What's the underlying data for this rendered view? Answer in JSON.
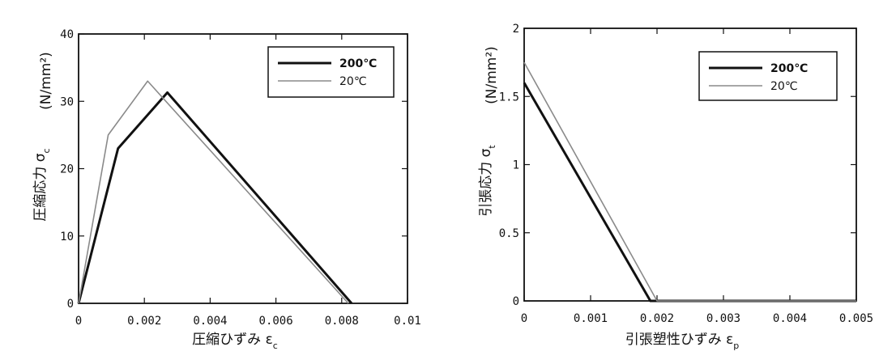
{
  "chart_data": [
    {
      "type": "line",
      "xlim": [
        0,
        0.01
      ],
      "ylim": [
        0,
        40
      ],
      "xticks": [
        "0",
        "0.002",
        "0.004",
        "0.006",
        "0.008",
        "0.01"
      ],
      "xtick_values": [
        0,
        0.002,
        0.004,
        0.006,
        0.008,
        0.01
      ],
      "yticks": [
        "0",
        "10",
        "20",
        "30",
        "40"
      ],
      "ytick_values": [
        0,
        10,
        20,
        30,
        40
      ],
      "xlabel_main": "圧縮ひずみ ε",
      "xlabel_sub": "c",
      "ylabel_main": "圧縮応力 σ",
      "ylabel_sub": "c",
      "ylabel_unit": "(N/mm²)",
      "legend_position": "top-right",
      "series": [
        {
          "name": "200℃",
          "color": "#111111",
          "x": [
            0,
            0.0012,
            0.0027,
            0.0083
          ],
          "y": [
            0,
            23,
            31.3,
            0
          ]
        },
        {
          "name": "20℃",
          "color": "#8a8a8a",
          "x": [
            0,
            0.0009,
            0.0021,
            0.0082
          ],
          "y": [
            0,
            25,
            33,
            0
          ]
        }
      ]
    },
    {
      "type": "line",
      "xlim": [
        0,
        0.005
      ],
      "ylim": [
        0,
        2
      ],
      "xticks": [
        "0",
        "0.001",
        "0.002",
        "0.003",
        "0.004",
        "0.005"
      ],
      "xtick_values": [
        0,
        0.001,
        0.002,
        0.003,
        0.004,
        0.005
      ],
      "yticks": [
        "0",
        "0.5",
        "1",
        "1.5",
        "2"
      ],
      "ytick_values": [
        0,
        0.5,
        1,
        1.5,
        2
      ],
      "xlabel_main": "引張塑性ひずみ ε",
      "xlabel_sub": "p",
      "ylabel_main": "引張応力 σ",
      "ylabel_sub": "t",
      "ylabel_unit": "(N/mm²)",
      "legend_position": "top-right",
      "series": [
        {
          "name": "200℃",
          "color": "#111111",
          "x": [
            0,
            0.0019,
            0.005
          ],
          "y": [
            1.6,
            0,
            0
          ]
        },
        {
          "name": "20℃",
          "color": "#8a8a8a",
          "x": [
            0,
            0.002,
            0.005
          ],
          "y": [
            1.75,
            0,
            0
          ]
        }
      ]
    }
  ]
}
